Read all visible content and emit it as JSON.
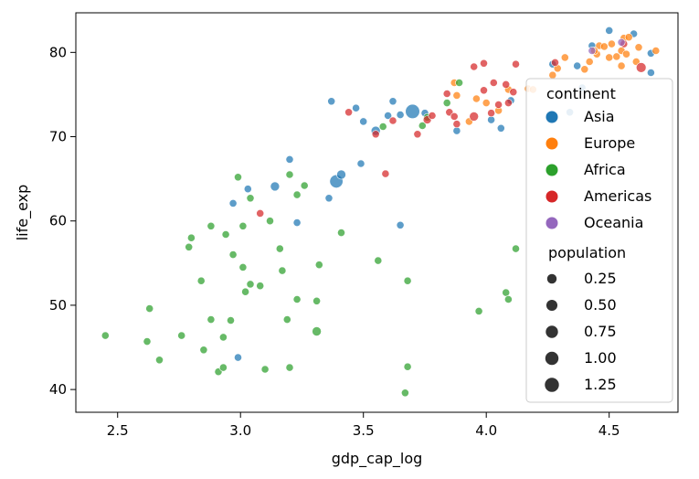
{
  "chart_data": {
    "type": "scatter",
    "xlabel": "gdp_cap_log",
    "ylabel": "life_exp",
    "xlim": [
      2.33,
      4.78
    ],
    "ylim": [
      37.3,
      84.7
    ],
    "xticks": [
      2.5,
      3.0,
      3.5,
      4.0,
      4.5
    ],
    "xtick_labels": [
      "2.5",
      "3.0",
      "3.5",
      "4.0",
      "4.5"
    ],
    "yticks": [
      40,
      50,
      60,
      70,
      80
    ],
    "ytick_labels": [
      "40",
      "50",
      "60",
      "70",
      "80"
    ],
    "grid": false,
    "legend": {
      "placement": "right",
      "hue_title": "continent",
      "size_title": "population",
      "size_labels": [
        "0.25",
        "0.50",
        "0.75",
        "1.00",
        "1.25"
      ],
      "size_values": [
        0.25,
        0.5,
        0.75,
        1.0,
        1.25
      ]
    },
    "series": [
      {
        "name": "Asia",
        "color": "#1f77b4",
        "points": [
          [
            3.37,
            74.2,
            0.05
          ],
          [
            3.47,
            73.4,
            0.05
          ],
          [
            3.5,
            71.8,
            0.05
          ],
          [
            3.55,
            70.7,
            0.2
          ],
          [
            3.6,
            72.5,
            0.05
          ],
          [
            3.62,
            74.2,
            0.05
          ],
          [
            3.65,
            72.6,
            0.05
          ],
          [
            3.7,
            73.0,
            1.3
          ],
          [
            3.75,
            72.8,
            0.05
          ],
          [
            3.88,
            70.7,
            0.05
          ],
          [
            4.02,
            72.0,
            0.05
          ],
          [
            4.06,
            71.0,
            0.05
          ],
          [
            4.1,
            74.3,
            0.05
          ],
          [
            4.27,
            78.6,
            0.05
          ],
          [
            4.34,
            72.9,
            0.05
          ],
          [
            4.37,
            78.4,
            0.05
          ],
          [
            4.43,
            80.8,
            0.05
          ],
          [
            4.5,
            82.6,
            0.05
          ],
          [
            4.6,
            82.2,
            0.05
          ],
          [
            4.67,
            77.6,
            0.05
          ],
          [
            4.67,
            79.9,
            0.05
          ],
          [
            3.2,
            67.3,
            0.05
          ],
          [
            3.39,
            64.7,
            1.0
          ],
          [
            3.41,
            65.5,
            0.2
          ],
          [
            3.14,
            64.1,
            0.2
          ],
          [
            3.03,
            63.8,
            0.05
          ],
          [
            2.97,
            62.1,
            0.05
          ],
          [
            3.36,
            62.7,
            0.05
          ],
          [
            3.23,
            59.8,
            0.05
          ],
          [
            3.65,
            59.5,
            0.05
          ],
          [
            3.49,
            66.8,
            0.05
          ],
          [
            2.99,
            43.8,
            0.05
          ],
          [
            4.39,
            75.8,
            0.05
          ]
        ]
      },
      {
        "name": "Europe",
        "color": "#ff7f0e",
        "points": [
          [
            3.87,
            76.4,
            0.05
          ],
          [
            3.88,
            74.9,
            0.05
          ],
          [
            3.93,
            71.8,
            0.05
          ],
          [
            3.96,
            74.5,
            0.05
          ],
          [
            4.0,
            74.0,
            0.05
          ],
          [
            4.05,
            73.1,
            0.05
          ],
          [
            4.09,
            75.6,
            0.05
          ],
          [
            4.17,
            75.7,
            0.05
          ],
          [
            4.19,
            75.6,
            0.05
          ],
          [
            4.27,
            77.3,
            0.05
          ],
          [
            4.29,
            78.1,
            0.05
          ],
          [
            4.32,
            79.4,
            0.05
          ],
          [
            4.4,
            78.0,
            0.05
          ],
          [
            4.42,
            78.9,
            0.05
          ],
          [
            4.45,
            79.8,
            0.05
          ],
          [
            4.46,
            80.8,
            0.05
          ],
          [
            4.48,
            80.7,
            0.05
          ],
          [
            4.5,
            79.4,
            0.05
          ],
          [
            4.51,
            81.0,
            0.05
          ],
          [
            4.53,
            79.5,
            0.05
          ],
          [
            4.55,
            80.2,
            0.05
          ],
          [
            4.56,
            81.7,
            0.05
          ],
          [
            4.57,
            79.8,
            0.05
          ],
          [
            4.58,
            81.8,
            0.05
          ],
          [
            4.61,
            78.9,
            0.05
          ],
          [
            4.62,
            80.6,
            0.05
          ],
          [
            4.69,
            80.2,
            0.05
          ],
          [
            4.55,
            78.4,
            0.05
          ],
          [
            4.44,
            80.2,
            0.05
          ]
        ]
      },
      {
        "name": "Africa",
        "color": "#2ca02c",
        "points": [
          [
            2.45,
            46.4,
            0.05
          ],
          [
            2.62,
            45.7,
            0.05
          ],
          [
            2.63,
            49.6,
            0.05
          ],
          [
            2.67,
            43.5,
            0.05
          ],
          [
            2.76,
            46.4,
            0.05
          ],
          [
            2.79,
            56.9,
            0.05
          ],
          [
            2.8,
            58.0,
            0.05
          ],
          [
            2.84,
            52.9,
            0.05
          ],
          [
            2.85,
            44.7,
            0.05
          ],
          [
            2.88,
            48.3,
            0.05
          ],
          [
            2.88,
            59.4,
            0.05
          ],
          [
            2.91,
            42.1,
            0.05
          ],
          [
            2.93,
            42.6,
            0.05
          ],
          [
            2.93,
            46.2,
            0.05
          ],
          [
            2.94,
            58.4,
            0.05
          ],
          [
            2.96,
            48.2,
            0.05
          ],
          [
            2.97,
            56.0,
            0.05
          ],
          [
            2.99,
            65.2,
            0.05
          ],
          [
            3.01,
            54.5,
            0.05
          ],
          [
            3.01,
            59.4,
            0.05
          ],
          [
            3.02,
            51.6,
            0.05
          ],
          [
            3.04,
            52.5,
            0.05
          ],
          [
            3.04,
            62.7,
            0.05
          ],
          [
            3.08,
            52.3,
            0.05
          ],
          [
            3.1,
            42.4,
            0.05
          ],
          [
            3.12,
            60.0,
            0.05
          ],
          [
            3.16,
            56.7,
            0.05
          ],
          [
            3.17,
            54.1,
            0.05
          ],
          [
            3.19,
            48.3,
            0.05
          ],
          [
            3.2,
            42.6,
            0.05
          ],
          [
            3.2,
            65.5,
            0.05
          ],
          [
            3.23,
            63.1,
            0.05
          ],
          [
            3.23,
            50.7,
            0.05
          ],
          [
            3.26,
            64.2,
            0.05
          ],
          [
            3.31,
            46.9,
            0.2
          ],
          [
            3.31,
            50.5,
            0.05
          ],
          [
            3.32,
            54.8,
            0.05
          ],
          [
            3.41,
            58.6,
            0.05
          ],
          [
            3.56,
            55.3,
            0.05
          ],
          [
            3.67,
            39.6,
            0.05
          ],
          [
            3.68,
            42.7,
            0.05
          ],
          [
            3.68,
            52.9,
            0.05
          ],
          [
            3.74,
            71.3,
            0.05
          ],
          [
            3.76,
            72.3,
            0.05
          ],
          [
            3.84,
            74.0,
            0.05
          ],
          [
            3.89,
            76.4,
            0.05
          ],
          [
            3.97,
            49.3,
            0.05
          ],
          [
            4.08,
            51.5,
            0.05
          ],
          [
            4.09,
            50.7,
            0.05
          ],
          [
            4.12,
            56.7,
            0.05
          ],
          [
            3.58,
            71.2,
            0.05
          ]
        ]
      },
      {
        "name": "Americas",
        "color": "#d62728",
        "points": [
          [
            3.08,
            60.9,
            0.05
          ],
          [
            3.44,
            72.9,
            0.05
          ],
          [
            3.55,
            70.3,
            0.05
          ],
          [
            3.59,
            65.6,
            0.05
          ],
          [
            3.62,
            71.9,
            0.05
          ],
          [
            3.72,
            70.3,
            0.05
          ],
          [
            3.76,
            72.0,
            0.1
          ],
          [
            3.78,
            72.5,
            0.05
          ],
          [
            3.84,
            75.1,
            0.05
          ],
          [
            3.85,
            72.9,
            0.05
          ],
          [
            3.87,
            72.4,
            0.05
          ],
          [
            3.88,
            71.5,
            0.05
          ],
          [
            3.95,
            78.3,
            0.05
          ],
          [
            3.95,
            72.4,
            0.2
          ],
          [
            3.99,
            78.7,
            0.05
          ],
          [
            3.99,
            75.5,
            0.05
          ],
          [
            4.02,
            72.8,
            0.05
          ],
          [
            4.03,
            76.4,
            0.05
          ],
          [
            4.05,
            73.8,
            0.05
          ],
          [
            4.08,
            76.2,
            0.05
          ],
          [
            4.09,
            74.0,
            0.05
          ],
          [
            4.11,
            75.3,
            0.05
          ],
          [
            4.12,
            78.6,
            0.05
          ],
          [
            4.28,
            78.8,
            0.05
          ],
          [
            4.56,
            81.0,
            0.05
          ],
          [
            4.63,
            78.2,
            0.3
          ]
        ]
      },
      {
        "name": "Oceania",
        "color": "#9467bd",
        "points": [
          [
            4.43,
            80.2,
            0.05
          ],
          [
            4.55,
            81.2,
            0.05
          ]
        ]
      }
    ]
  }
}
